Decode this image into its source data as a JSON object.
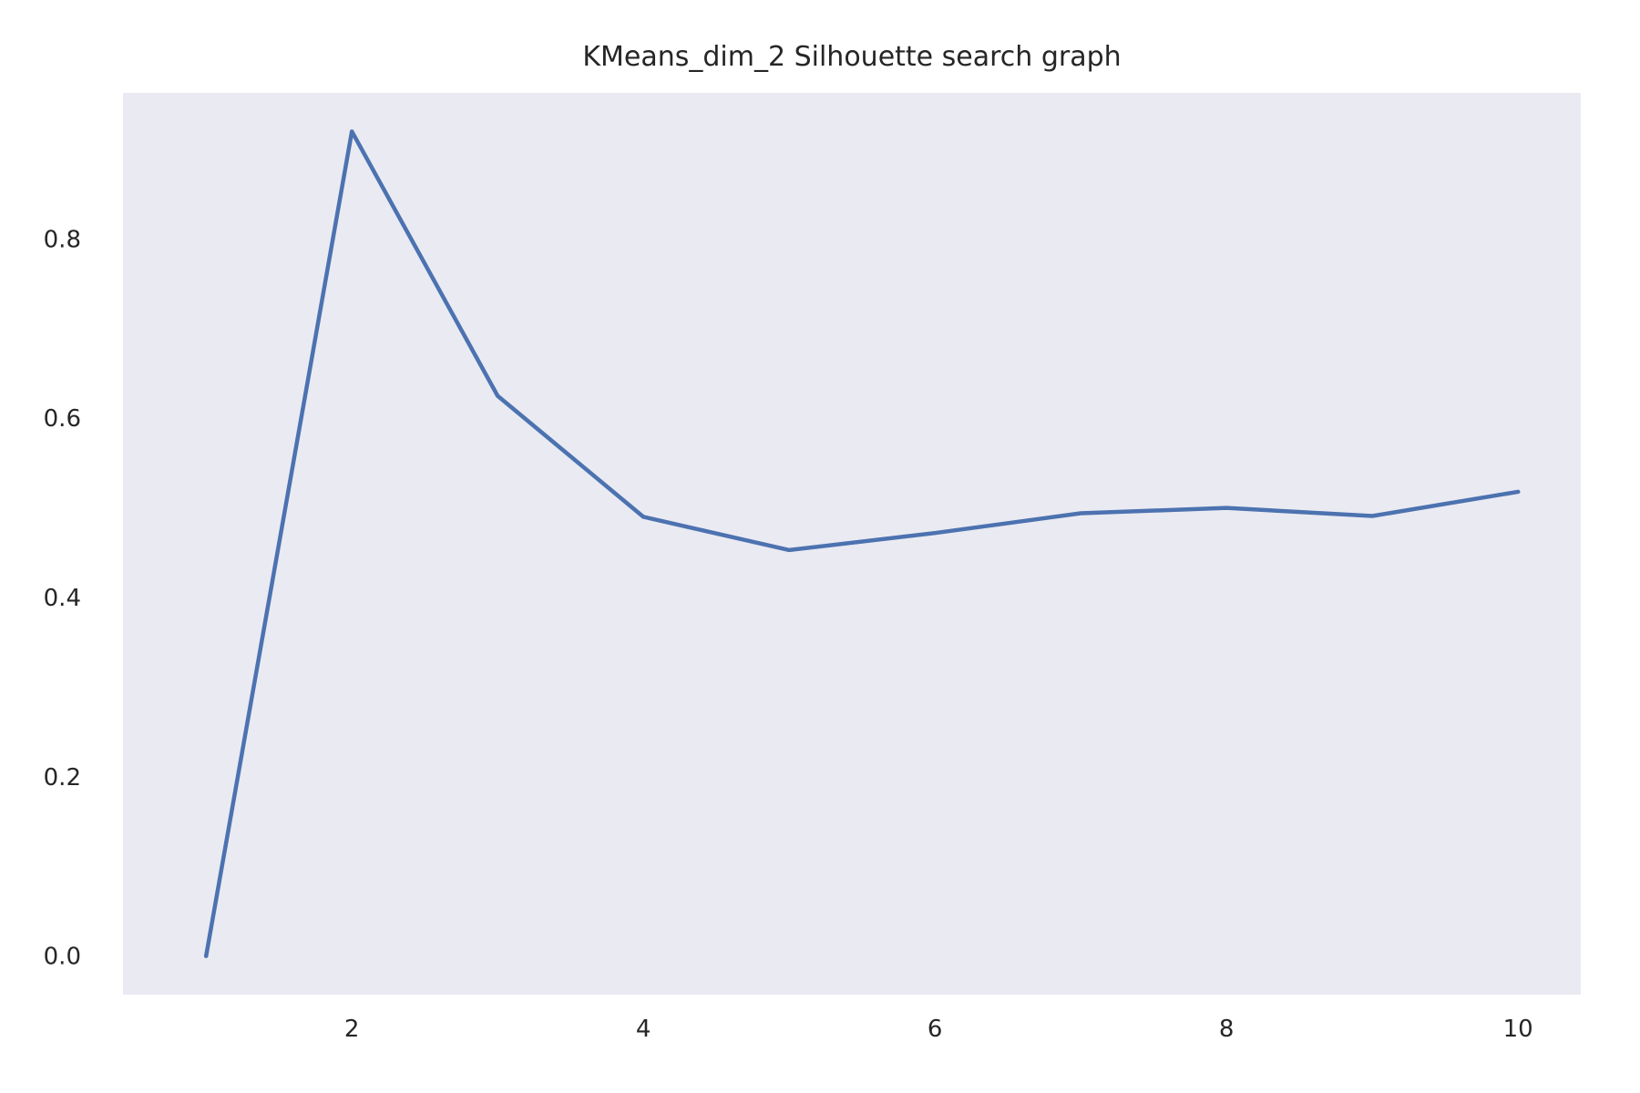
{
  "chart_data": {
    "type": "line",
    "title": "KMeans_dim_2 Silhouette search graph",
    "xlabel": "",
    "ylabel": "",
    "x": [
      1,
      2,
      3,
      4,
      5,
      6,
      7,
      8,
      9,
      10
    ],
    "series": [
      {
        "values": [
          0.0,
          0.92,
          0.625,
          0.49,
          0.453,
          0.472,
          0.494,
          0.5,
          0.491,
          0.518
        ]
      }
    ],
    "xlim": [
      0.43,
      10.43
    ],
    "ylim": [
      -0.043,
      0.963
    ],
    "xticks": [
      2,
      4,
      6,
      8,
      10
    ],
    "yticks": [
      0.0,
      0.2,
      0.4,
      0.6,
      0.8
    ],
    "xtick_labels": [
      "2",
      "4",
      "6",
      "8",
      "10"
    ],
    "ytick_labels": [
      "0.0",
      "0.2",
      "0.4",
      "0.6",
      "0.8"
    ],
    "grid": false,
    "legend": "none",
    "colors": {
      "plot_background": "#eaeaf2",
      "line": "#4c72b0",
      "text": "#262626"
    }
  }
}
